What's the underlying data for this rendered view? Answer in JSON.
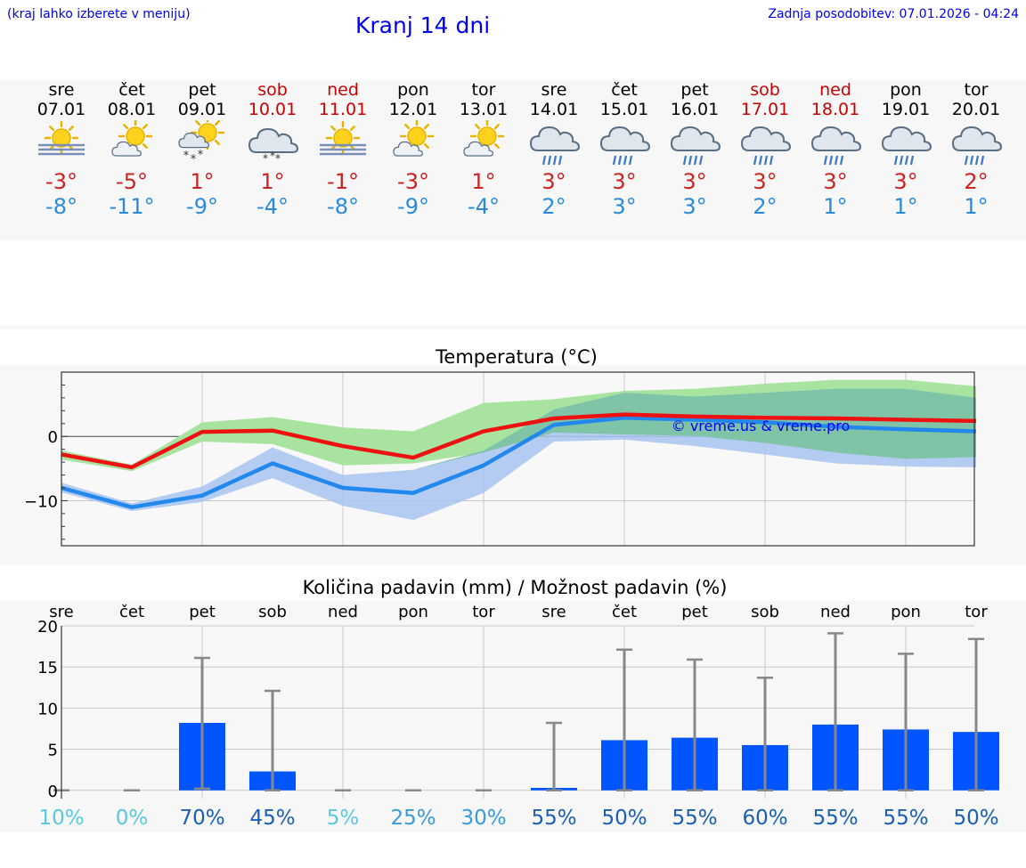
{
  "header": {
    "hint": "(kraj lahko izberete v meniju)",
    "title": "Kranj 14 dni",
    "updated": "Zadnja posodobitev: 07.01.2026 - 04:24"
  },
  "days": [
    {
      "name": "sre",
      "date": "07.01",
      "weekend": false,
      "icon": "sun-fog-icon",
      "tmax": "-3°",
      "tmin": "-8°"
    },
    {
      "name": "čet",
      "date": "08.01",
      "weekend": false,
      "icon": "sun-cloud-icon",
      "tmax": "-5°",
      "tmin": "-11°"
    },
    {
      "name": "pet",
      "date": "09.01",
      "weekend": false,
      "icon": "sun-cloud-snow-icon",
      "tmax": "1°",
      "tmin": "-9°"
    },
    {
      "name": "sob",
      "date": "10.01",
      "weekend": true,
      "icon": "cloud-snow-icon",
      "tmax": "1°",
      "tmin": "-4°"
    },
    {
      "name": "ned",
      "date": "11.01",
      "weekend": true,
      "icon": "sun-fog-icon",
      "tmax": "-1°",
      "tmin": "-8°"
    },
    {
      "name": "pon",
      "date": "12.01",
      "weekend": false,
      "icon": "sun-cloud-icon",
      "tmax": "-3°",
      "tmin": "-9°"
    },
    {
      "name": "tor",
      "date": "13.01",
      "weekend": false,
      "icon": "sun-cloud-icon",
      "tmax": "1°",
      "tmin": "-4°"
    },
    {
      "name": "sre",
      "date": "14.01",
      "weekend": false,
      "icon": "cloud-rain-icon",
      "tmax": "3°",
      "tmin": "2°"
    },
    {
      "name": "čet",
      "date": "15.01",
      "weekend": false,
      "icon": "cloud-rain-icon",
      "tmax": "3°",
      "tmin": "3°"
    },
    {
      "name": "pet",
      "date": "16.01",
      "weekend": false,
      "icon": "cloud-rain-icon",
      "tmax": "3°",
      "tmin": "3°"
    },
    {
      "name": "sob",
      "date": "17.01",
      "weekend": true,
      "icon": "cloud-rain-icon",
      "tmax": "3°",
      "tmin": "2°"
    },
    {
      "name": "ned",
      "date": "18.01",
      "weekend": true,
      "icon": "cloud-rain-icon",
      "tmax": "3°",
      "tmin": "1°"
    },
    {
      "name": "pon",
      "date": "19.01",
      "weekend": false,
      "icon": "cloud-rain-icon",
      "tmax": "3°",
      "tmin": "1°"
    },
    {
      "name": "tor",
      "date": "20.01",
      "weekend": false,
      "icon": "cloud-rain-icon",
      "tmax": "2°",
      "tmin": "1°"
    }
  ],
  "colors": {
    "max_line": "#ee1111",
    "min_line": "#2288ee",
    "max_band": "#a8e4a0",
    "min_band": "#a8c4f0",
    "overlap_band": "#80c4a8",
    "bar": "#0055ff",
    "whisker": "#888888",
    "weekend": "#cc0000"
  },
  "chart_data": [
    {
      "type": "line",
      "title": "Temperatura (°C)",
      "categories": [
        "sre",
        "čet",
        "pet",
        "sob",
        "ned",
        "pon",
        "tor",
        "sre",
        "čet",
        "pet",
        "sob",
        "ned",
        "pon",
        "tor"
      ],
      "ylim": [
        -17,
        10
      ],
      "yticks": [
        0,
        -10
      ],
      "ytick_labels": [
        "0",
        "−10"
      ],
      "watermark": "© vreme.us & vreme.pro",
      "series": [
        {
          "name": "max",
          "values": [
            -2.8,
            -4.8,
            0.7,
            0.9,
            -1.5,
            -3.3,
            0.8,
            2.8,
            3.4,
            3.1,
            2.9,
            2.8,
            2.6,
            2.4
          ]
        },
        {
          "name": "min",
          "values": [
            -8,
            -11,
            -9.2,
            -4.2,
            -8,
            -8.8,
            -4.5,
            1.8,
            2.9,
            2.6,
            2.2,
            1.5,
            1.1,
            0.8
          ]
        }
      ],
      "max_band": {
        "upper": [
          -2.2,
          -4.4,
          2.2,
          3,
          1.4,
          0.8,
          5.2,
          5.8,
          7.1,
          7.4,
          8.2,
          8.8,
          8.8,
          7.8
        ],
        "lower": [
          -3.6,
          -5.4,
          -0.8,
          -1.2,
          -4.5,
          -4.2,
          -2.5,
          0.6,
          0.3,
          0.1,
          -1,
          -2.5,
          -3.5,
          -3.2
        ]
      },
      "min_band": {
        "upper": [
          -7.2,
          -10.4,
          -7.8,
          -1.7,
          -6,
          -5.2,
          -2.2,
          4.2,
          6.8,
          6.2,
          6.8,
          7.4,
          7.4,
          6
        ]
      },
      "min_band_lower": [
        -8.7,
        -11.6,
        -10.2,
        -6.5,
        -10.8,
        -13,
        -8.8,
        -0.8,
        -0.5,
        -1.5,
        -2.8,
        -4.2,
        -4.7,
        -4.8
      ]
    },
    {
      "type": "bar",
      "title": "Količina padavin (mm) / Možnost padavin (%)",
      "categories": [
        "sre",
        "čet",
        "pet",
        "sob",
        "ned",
        "pon",
        "tor",
        "sre",
        "čet",
        "pet",
        "sob",
        "ned",
        "pon",
        "tor"
      ],
      "ylim": [
        -1,
        20
      ],
      "yticks": [
        0,
        5,
        10,
        15,
        20
      ],
      "ytick_labels": [
        "0",
        "5",
        "10",
        "15",
        "20"
      ],
      "values": [
        0,
        0,
        8.2,
        2.3,
        0,
        0,
        0,
        0.3,
        6.1,
        6.4,
        5.5,
        8,
        7.4,
        7.1
      ],
      "whisker_high": [
        0,
        0,
        16.1,
        12.1,
        0,
        0,
        0,
        8.2,
        17.1,
        15.9,
        13.7,
        19.1,
        16.6,
        18.4
      ],
      "whisker_low": [
        0,
        0,
        0.2,
        0,
        0,
        0,
        0,
        0,
        0,
        0,
        0,
        0,
        0,
        0
      ],
      "chance": [
        "10%",
        "0%",
        "70%",
        "45%",
        "5%",
        "25%",
        "30%",
        "55%",
        "50%",
        "55%",
        "60%",
        "55%",
        "55%",
        "50%"
      ],
      "chance_values": [
        10,
        0,
        70,
        45,
        5,
        25,
        30,
        55,
        50,
        55,
        60,
        55,
        55,
        50
      ]
    }
  ]
}
